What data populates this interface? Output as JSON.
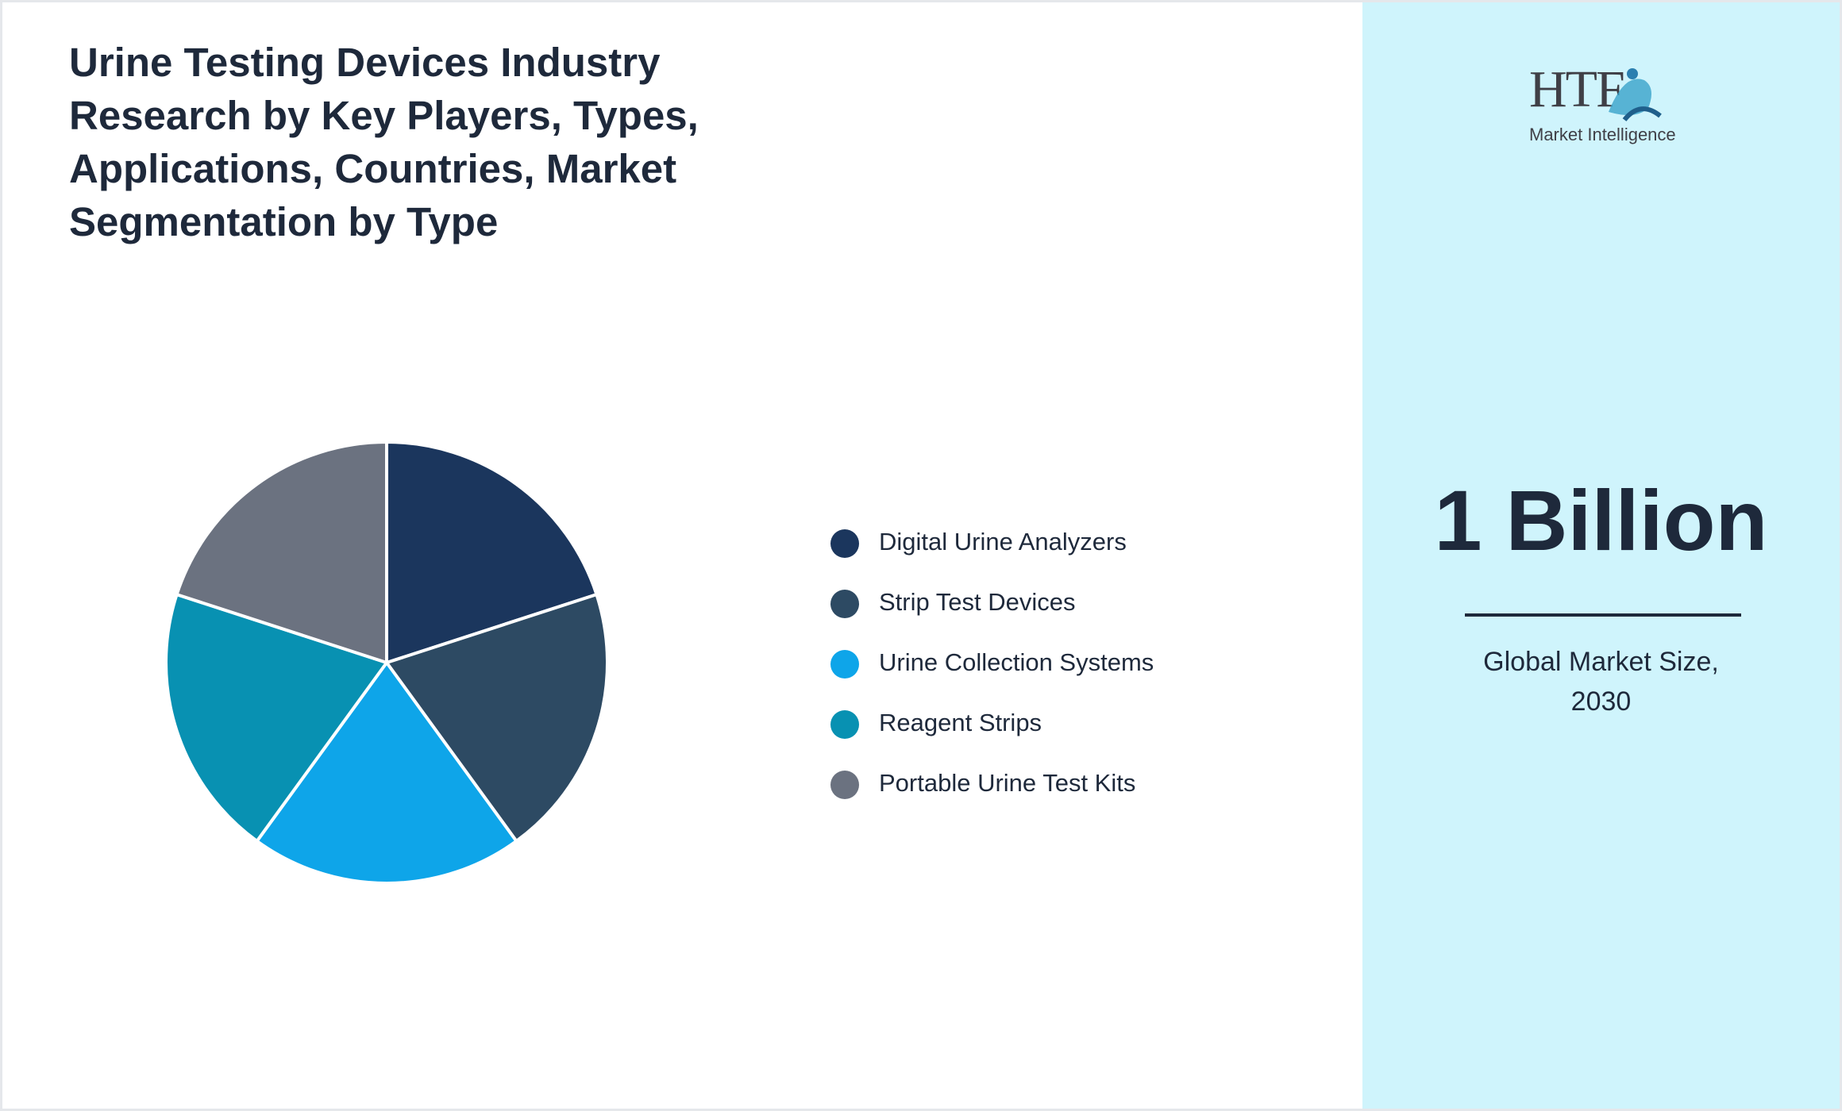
{
  "chart_data": {
    "type": "pie",
    "title": "Urine Testing Devices Industry Research by Key Players, Types, Applications, Countries, Market Segmentation by Type",
    "categories": [
      "Digital Urine Analyzers",
      "Strip Test Devices",
      "Urine Collection Systems",
      "Reagent Strips",
      "Portable Urine Test Kits"
    ],
    "values": [
      20,
      20,
      20,
      20,
      20
    ],
    "colors": [
      "#1b365d",
      "#2d4a63",
      "#0ea5e9",
      "#0891b2",
      "#6b7280"
    ]
  },
  "logo": {
    "brand": "HTF",
    "tagline": "Market Intelligence"
  },
  "market_size": {
    "value": "1 Billion",
    "label": "Global Market Size, 2030"
  }
}
